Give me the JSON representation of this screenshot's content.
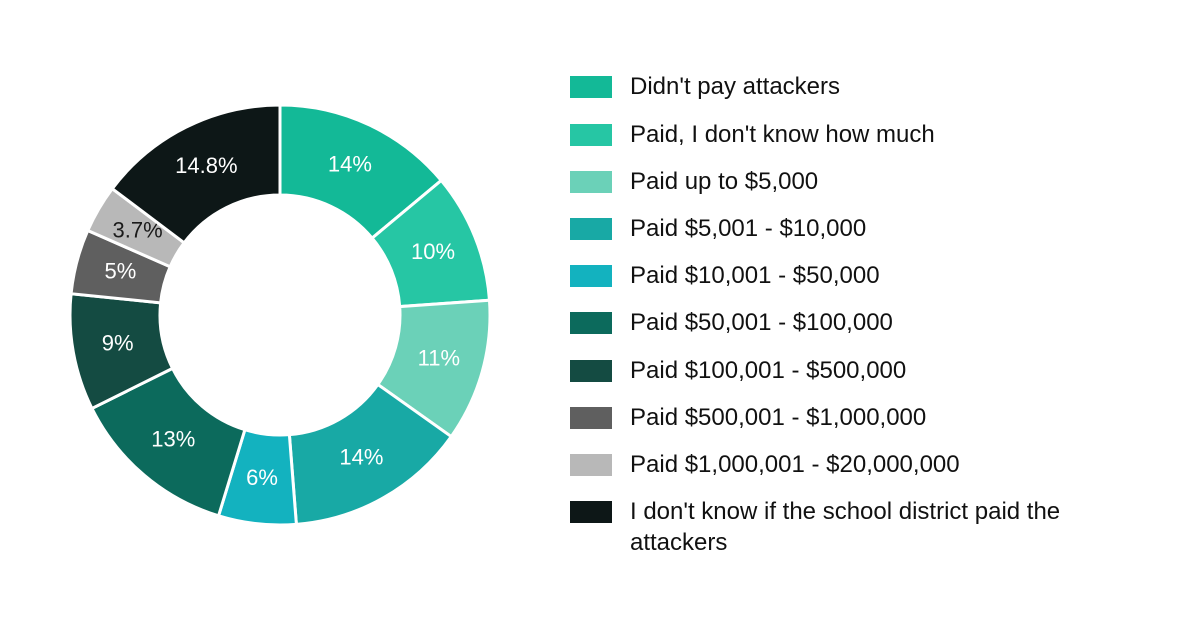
{
  "chart": {
    "type": "donut",
    "background_color": "#ffffff",
    "outer_radius": 210,
    "inner_radius": 120,
    "start_angle_deg": 0,
    "gap_color": "#ffffff",
    "gap_width": 3,
    "label_fontsize": 22,
    "label_color_light": "#ffffff",
    "label_color_dark": "#1a1a1a",
    "slices": [
      {
        "label": "14%",
        "value": 14.0,
        "color": "#13b997",
        "label_color": "#ffffff"
      },
      {
        "label": "10%",
        "value": 10.0,
        "color": "#26c6a4",
        "label_color": "#ffffff"
      },
      {
        "label": "11%",
        "value": 11.0,
        "color": "#6bd1b8",
        "label_color": "#ffffff"
      },
      {
        "label": "14%",
        "value": 14.0,
        "color": "#18a9a5",
        "label_color": "#ffffff"
      },
      {
        "label": "6%",
        "value": 6.0,
        "color": "#13b2bf",
        "label_color": "#ffffff"
      },
      {
        "label": "13%",
        "value": 13.0,
        "color": "#0c6a5c",
        "label_color": "#ffffff"
      },
      {
        "label": "9%",
        "value": 9.0,
        "color": "#144b42",
        "label_color": "#ffffff"
      },
      {
        "label": "5%",
        "value": 5.0,
        "color": "#5f5f5f",
        "label_color": "#ffffff"
      },
      {
        "label": "3.7%",
        "value": 3.7,
        "color": "#b8b8b8",
        "label_color": "#1a1a1a"
      },
      {
        "label": "14.8%",
        "value": 14.8,
        "color": "#0d1717",
        "label_color": "#ffffff"
      }
    ]
  },
  "legend": {
    "swatch_width": 42,
    "swatch_height": 22,
    "fontsize": 24,
    "text_color": "#111111",
    "items": [
      {
        "color": "#13b997",
        "label": "Didn't pay attackers"
      },
      {
        "color": "#26c6a4",
        "label": "Paid, I don't know how much"
      },
      {
        "color": "#6bd1b8",
        "label": "Paid up to $5,000"
      },
      {
        "color": "#18a9a5",
        "label": "Paid $5,001 - $10,000"
      },
      {
        "color": "#13b2bf",
        "label": "Paid $10,001 - $50,000"
      },
      {
        "color": "#0c6a5c",
        "label": "Paid $50,001 - $100,000"
      },
      {
        "color": "#144b42",
        "label": "Paid $100,001 - $500,000"
      },
      {
        "color": "#5f5f5f",
        "label": "Paid $500,001 - $1,000,000"
      },
      {
        "color": "#b8b8b8",
        "label": "Paid $1,000,001 - $20,000,000"
      },
      {
        "color": "#0d1717",
        "label": "I don't know if the school district paid the attackers"
      }
    ]
  }
}
